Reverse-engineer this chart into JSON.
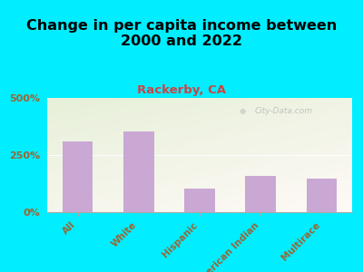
{
  "title": "Change in per capita income between\n2000 and 2022",
  "subtitle": "Rackerby, CA",
  "categories": [
    "All",
    "White",
    "Hispanic",
    "American Indian",
    "Multirace"
  ],
  "values": [
    310,
    355,
    105,
    160,
    145
  ],
  "bar_color": "#c9a8d4",
  "title_fontsize": 11.5,
  "subtitle_fontsize": 9.5,
  "subtitle_color": "#cc4444",
  "tick_label_color": "#996633",
  "background_outer": "#00eeff",
  "ylim": [
    0,
    500
  ],
  "yticks": [
    0,
    250,
    500
  ],
  "ytick_labels": [
    "0%",
    "250%",
    "500%"
  ],
  "watermark": "City-Data.com"
}
